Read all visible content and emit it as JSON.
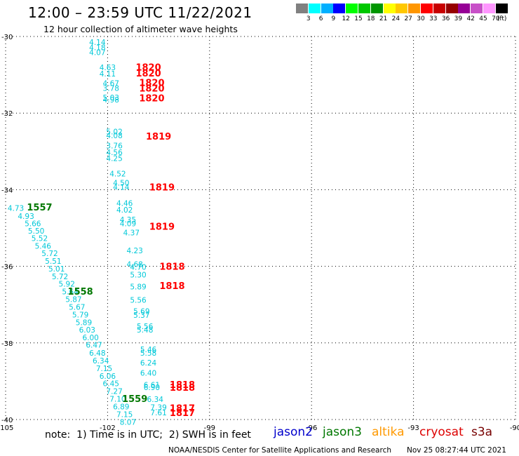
{
  "header": {
    "title": "12:00 – 23:59 UTC 11/22/2021",
    "subtitle": "12 hour collection of altimeter wave heights"
  },
  "colorbar": {
    "unit": "(ft)",
    "colors": [
      "#808080",
      "#00ffff",
      "#00b0ff",
      "#0000ff",
      "#00ff00",
      "#00c800",
      "#009600",
      "#ffff00",
      "#ffc800",
      "#ff9600",
      "#ff0000",
      "#c80000",
      "#960000",
      "#960096",
      "#c850c8",
      "#ff96ff",
      "#000000"
    ],
    "labels": [
      "3",
      "6",
      "9",
      "12",
      "15",
      "18",
      "21",
      "24",
      "27",
      "30",
      "33",
      "36",
      "39",
      "42",
      "45",
      "70"
    ]
  },
  "chart_data": {
    "type": "scatter",
    "xlim": [
      -105,
      -90
    ],
    "ylim": [
      -40,
      -30
    ],
    "x_ticks": [
      -105,
      -102,
      -99,
      -96,
      -93,
      -90
    ],
    "x_tick_labels": [
      "-105",
      "-102",
      "-99",
      "-96",
      "-93",
      "-90"
    ],
    "y_ticks": [
      -30,
      -32,
      -34,
      -36,
      -38,
      -40
    ],
    "y_tick_labels": [
      "-30",
      "-32",
      "-34",
      "-36",
      "-38",
      "-40"
    ],
    "grid": "dotted",
    "wave_heights": [
      {
        "lon": -102.3,
        "lat": -30.15,
        "text": "4.14"
      },
      {
        "lon": -102.3,
        "lat": -30.28,
        "text": "4.18"
      },
      {
        "lon": -102.3,
        "lat": -30.41,
        "text": "4.07"
      },
      {
        "lon": -102.0,
        "lat": -30.81,
        "text": "4.63"
      },
      {
        "lon": -102.0,
        "lat": -30.97,
        "text": "4.11"
      },
      {
        "lon": -101.9,
        "lat": -31.22,
        "text": "4.67"
      },
      {
        "lon": -101.9,
        "lat": -31.35,
        "text": "3.78"
      },
      {
        "lon": -101.9,
        "lat": -31.59,
        "text": "5.03"
      },
      {
        "lon": -101.9,
        "lat": -31.65,
        "text": "4.98"
      },
      {
        "lon": -101.8,
        "lat": -32.48,
        "text": "5.02"
      },
      {
        "lon": -101.8,
        "lat": -32.58,
        "text": "4.08"
      },
      {
        "lon": -101.8,
        "lat": -32.85,
        "text": "3.76"
      },
      {
        "lon": -101.8,
        "lat": -33.02,
        "text": "4.56"
      },
      {
        "lon": -101.8,
        "lat": -33.18,
        "text": "4.25"
      },
      {
        "lon": -101.7,
        "lat": -33.58,
        "text": "4.52"
      },
      {
        "lon": -101.6,
        "lat": -33.82,
        "text": "4.50"
      },
      {
        "lon": -101.6,
        "lat": -33.93,
        "text": "4.14"
      },
      {
        "lon": -101.5,
        "lat": -34.35,
        "text": "4.46"
      },
      {
        "lon": -101.5,
        "lat": -34.52,
        "text": "4.02"
      },
      {
        "lon": -101.4,
        "lat": -34.78,
        "text": "4.35"
      },
      {
        "lon": -101.4,
        "lat": -34.88,
        "text": "4.09"
      },
      {
        "lon": -101.3,
        "lat": -35.12,
        "text": "4.37"
      },
      {
        "lon": -101.2,
        "lat": -35.59,
        "text": "4.23"
      },
      {
        "lon": -101.2,
        "lat": -35.94,
        "text": "4.68"
      },
      {
        "lon": -101.1,
        "lat": -36.02,
        "text": "4.70"
      },
      {
        "lon": -101.1,
        "lat": -36.22,
        "text": "5.30"
      },
      {
        "lon": -101.1,
        "lat": -36.53,
        "text": "5.89"
      },
      {
        "lon": -101.1,
        "lat": -36.88,
        "text": "5.56"
      },
      {
        "lon": -101.0,
        "lat": -37.17,
        "text": "5.69"
      },
      {
        "lon": -101.0,
        "lat": -37.27,
        "text": "5.37"
      },
      {
        "lon": -100.9,
        "lat": -37.56,
        "text": "5.56"
      },
      {
        "lon": -100.9,
        "lat": -37.66,
        "text": "5.48"
      },
      {
        "lon": -100.8,
        "lat": -38.17,
        "text": "5.46"
      },
      {
        "lon": -100.8,
        "lat": -38.26,
        "text": "5.58"
      },
      {
        "lon": -100.8,
        "lat": -38.52,
        "text": "6.24"
      },
      {
        "lon": -100.8,
        "lat": -38.78,
        "text": "6.40"
      },
      {
        "lon": -100.7,
        "lat": -39.09,
        "text": "6.61"
      },
      {
        "lon": -100.7,
        "lat": -39.16,
        "text": "6.90"
      },
      {
        "lon": -100.6,
        "lat": -39.47,
        "text": "6.34"
      },
      {
        "lon": -100.5,
        "lat": -39.68,
        "text": "7.39"
      },
      {
        "lon": -100.5,
        "lat": -39.82,
        "text": "7.61"
      },
      {
        "lon": -104.7,
        "lat": -34.48,
        "text": "4.73"
      },
      {
        "lon": -104.4,
        "lat": -34.69,
        "text": "4.93"
      },
      {
        "lon": -104.2,
        "lat": -34.88,
        "text": "5.66"
      },
      {
        "lon": -104.1,
        "lat": -35.07,
        "text": "5.50"
      },
      {
        "lon": -104.0,
        "lat": -35.27,
        "text": "5.52"
      },
      {
        "lon": -103.9,
        "lat": -35.47,
        "text": "5.46"
      },
      {
        "lon": -103.7,
        "lat": -35.66,
        "text": "5.72"
      },
      {
        "lon": -103.6,
        "lat": -35.86,
        "text": "5.51"
      },
      {
        "lon": -103.5,
        "lat": -36.06,
        "text": "5.01"
      },
      {
        "lon": -103.4,
        "lat": -36.26,
        "text": "5.72"
      },
      {
        "lon": -103.2,
        "lat": -36.46,
        "text": "5.92"
      },
      {
        "lon": -103.1,
        "lat": -36.66,
        "text": "5.64"
      },
      {
        "lon": -103.0,
        "lat": -36.86,
        "text": "5.87"
      },
      {
        "lon": -102.9,
        "lat": -37.06,
        "text": "5.67"
      },
      {
        "lon": -102.8,
        "lat": -37.26,
        "text": "5.79"
      },
      {
        "lon": -102.7,
        "lat": -37.46,
        "text": "5.89"
      },
      {
        "lon": -102.6,
        "lat": -37.66,
        "text": "6.03"
      },
      {
        "lon": -102.5,
        "lat": -37.86,
        "text": "6.00"
      },
      {
        "lon": -102.4,
        "lat": -38.05,
        "text": "6.47"
      },
      {
        "lon": -102.3,
        "lat": -38.26,
        "text": "6.48"
      },
      {
        "lon": -102.2,
        "lat": -38.46,
        "text": "6.34"
      },
      {
        "lon": -102.1,
        "lat": -38.66,
        "text": "7.15"
      },
      {
        "lon": -102.0,
        "lat": -38.86,
        "text": "6.06"
      },
      {
        "lon": -101.9,
        "lat": -39.06,
        "text": "6.45"
      },
      {
        "lon": -101.8,
        "lat": -39.26,
        "text": "7.27"
      },
      {
        "lon": -101.7,
        "lat": -39.46,
        "text": "7.10"
      },
      {
        "lon": -101.6,
        "lat": -39.66,
        "text": "6.89"
      },
      {
        "lon": -101.5,
        "lat": -39.86,
        "text": "7.15"
      },
      {
        "lon": -101.4,
        "lat": -40.06,
        "text": "8.07"
      }
    ],
    "time_labels": [
      {
        "lon": -100.8,
        "lat": -30.8,
        "text": "1820",
        "sat": "cryosat"
      },
      {
        "lon": -100.8,
        "lat": -30.95,
        "text": "1820",
        "sat": "cryosat"
      },
      {
        "lon": -100.7,
        "lat": -31.2,
        "text": "1820",
        "sat": "cryosat"
      },
      {
        "lon": -100.7,
        "lat": -31.35,
        "text": "1820",
        "sat": "cryosat"
      },
      {
        "lon": -100.7,
        "lat": -31.6,
        "text": "1820",
        "sat": "cryosat"
      },
      {
        "lon": -100.5,
        "lat": -32.6,
        "text": "1819",
        "sat": "cryosat"
      },
      {
        "lon": -100.4,
        "lat": -33.93,
        "text": "1819",
        "sat": "cryosat"
      },
      {
        "lon": -100.4,
        "lat": -34.95,
        "text": "1819",
        "sat": "cryosat"
      },
      {
        "lon": -100.1,
        "lat": -36.0,
        "text": "1818",
        "sat": "cryosat"
      },
      {
        "lon": -100.1,
        "lat": -36.5,
        "text": "1818",
        "sat": "cryosat"
      },
      {
        "lon": -99.8,
        "lat": -39.08,
        "text": "1818",
        "sat": "cryosat"
      },
      {
        "lon": -99.8,
        "lat": -39.16,
        "text": "1818",
        "sat": "cryosat"
      },
      {
        "lon": -99.8,
        "lat": -39.7,
        "text": "1817",
        "sat": "cryosat"
      },
      {
        "lon": -99.8,
        "lat": -39.82,
        "text": "1817",
        "sat": "cryosat"
      },
      {
        "lon": -104.0,
        "lat": -34.45,
        "text": "1557",
        "sat": "jason3"
      },
      {
        "lon": -102.8,
        "lat": -36.65,
        "text": "1558",
        "sat": "jason3"
      },
      {
        "lon": -101.2,
        "lat": -39.45,
        "text": "1559",
        "sat": "jason3"
      }
    ]
  },
  "footer": {
    "note": "note:  1) Time is in UTC;  2) SWH is in feet",
    "satellites": [
      {
        "name": "jason2",
        "color": "#0000cc"
      },
      {
        "name": "jason3",
        "color": "#007700"
      },
      {
        "name": "altika",
        "color": "#ff9900"
      },
      {
        "name": "cryosat",
        "color": "#dd0000"
      },
      {
        "name": "s3a",
        "color": "#770000"
      }
    ],
    "credit": "NOAA/NESDIS Center for Satellite Applications and Research",
    "timestamp": "Nov 25 08:27:44 UTC 2021"
  },
  "colors": {
    "wave_text": "#00c8d8",
    "cryosat": "#ff0000",
    "jason3": "#007700",
    "grid": "#000000"
  }
}
